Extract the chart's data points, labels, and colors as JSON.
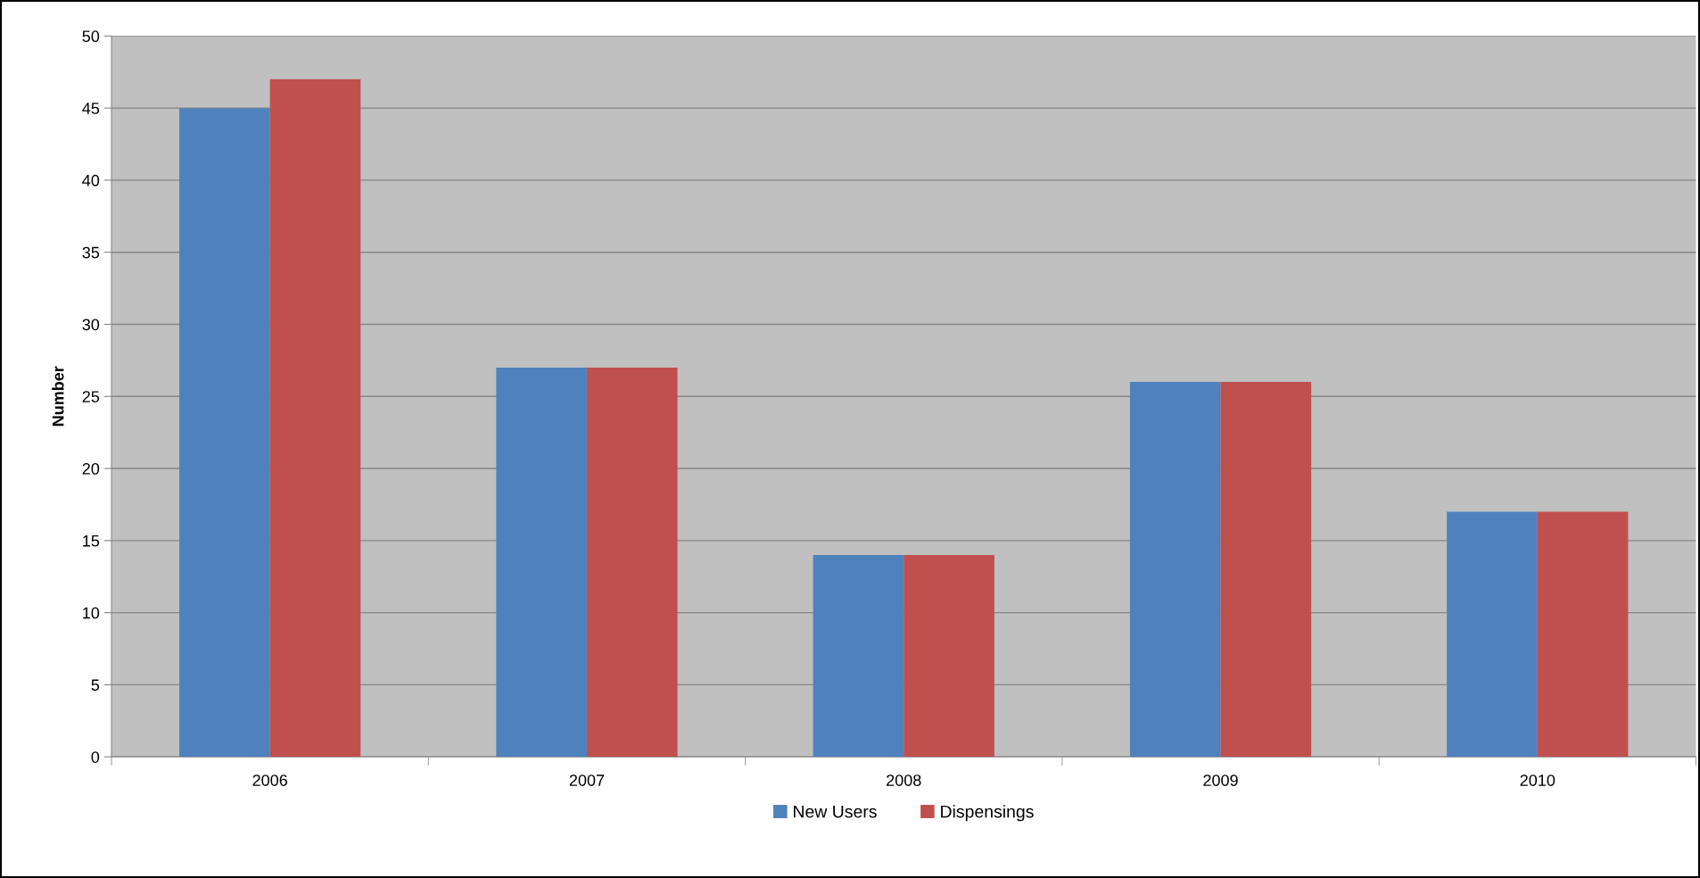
{
  "chart_data": {
    "type": "bar",
    "ylabel": "Number",
    "categories": [
      "2006",
      "2007",
      "2008",
      "2009",
      "2010"
    ],
    "series": [
      {
        "name": "New Users",
        "color": "#4f81bd",
        "values": [
          45,
          27,
          14,
          26,
          17
        ]
      },
      {
        "name": "Dispensings",
        "color": "#c0504d",
        "values": [
          47,
          27,
          14,
          26,
          17
        ]
      }
    ],
    "ylim": [
      0,
      50
    ],
    "yticks": [
      0,
      5,
      10,
      15,
      20,
      25,
      30,
      35,
      40,
      45,
      50
    ],
    "grid": "y",
    "legend": "bottom"
  }
}
